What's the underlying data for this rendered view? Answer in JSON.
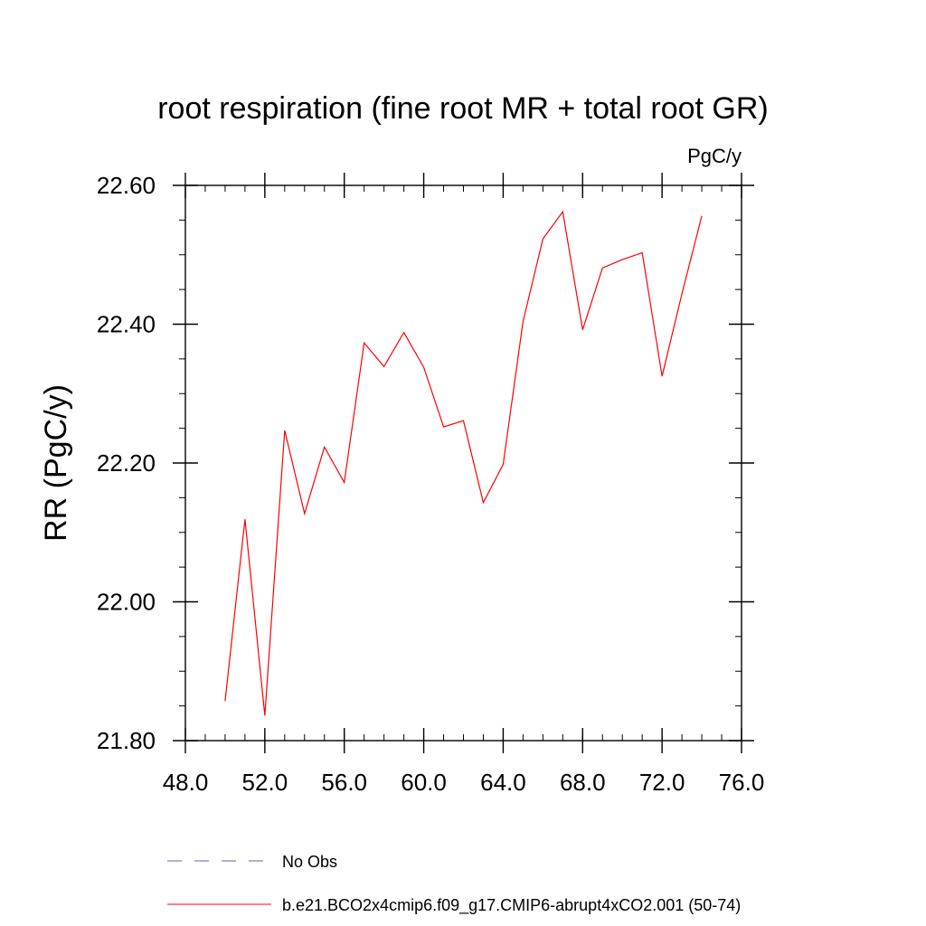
{
  "chart_data": {
    "type": "line",
    "title": "root respiration (fine root MR + total root GR)",
    "units_label": "PgC/y",
    "ylabel": "RR  (PgC/y)",
    "xlabel": "",
    "xlim": [
      48,
      76
    ],
    "ylim": [
      21.8,
      22.6
    ],
    "x_ticks": [
      48,
      52,
      56,
      60,
      64,
      68,
      72,
      76
    ],
    "x_tick_labels": [
      "48.0",
      "52.0",
      "56.0",
      "60.0",
      "64.0",
      "68.0",
      "72.0",
      "76.0"
    ],
    "x_minor_step": 1,
    "y_ticks": [
      21.8,
      22.0,
      22.2,
      22.4,
      22.6
    ],
    "y_tick_labels": [
      "21.80",
      "22.00",
      "22.20",
      "22.40",
      "22.60"
    ],
    "y_minor_step": 0.05,
    "grid": false,
    "legend_position": "bottom",
    "series": [
      {
        "name": "b.e21.BCO2x4cmip6.f09_g17.CMIP6-abrupt4xCO2.001 (50-74)",
        "color": "#ff0000",
        "style": "solid",
        "x": [
          50,
          51,
          52,
          53,
          54,
          55,
          56,
          57,
          58,
          59,
          60,
          61,
          62,
          63,
          64,
          65,
          66,
          67,
          68,
          69,
          70,
          71,
          72,
          73,
          74
        ],
        "values": [
          21.857,
          22.119,
          21.836,
          22.247,
          22.127,
          22.223,
          22.172,
          22.373,
          22.339,
          22.388,
          22.338,
          22.252,
          22.261,
          22.143,
          22.198,
          22.404,
          22.523,
          22.562,
          22.392,
          22.481,
          22.493,
          22.503,
          22.325,
          22.444,
          22.556
        ]
      }
    ],
    "legend_entries": [
      {
        "label": "No Obs",
        "color": "#6a5acd",
        "style": "dashed"
      },
      {
        "label": "b.e21.BCO2x4cmip6.f09_g17.CMIP6-abrupt4xCO2.001 (50-74)",
        "color": "#ff0000",
        "style": "solid"
      }
    ]
  }
}
